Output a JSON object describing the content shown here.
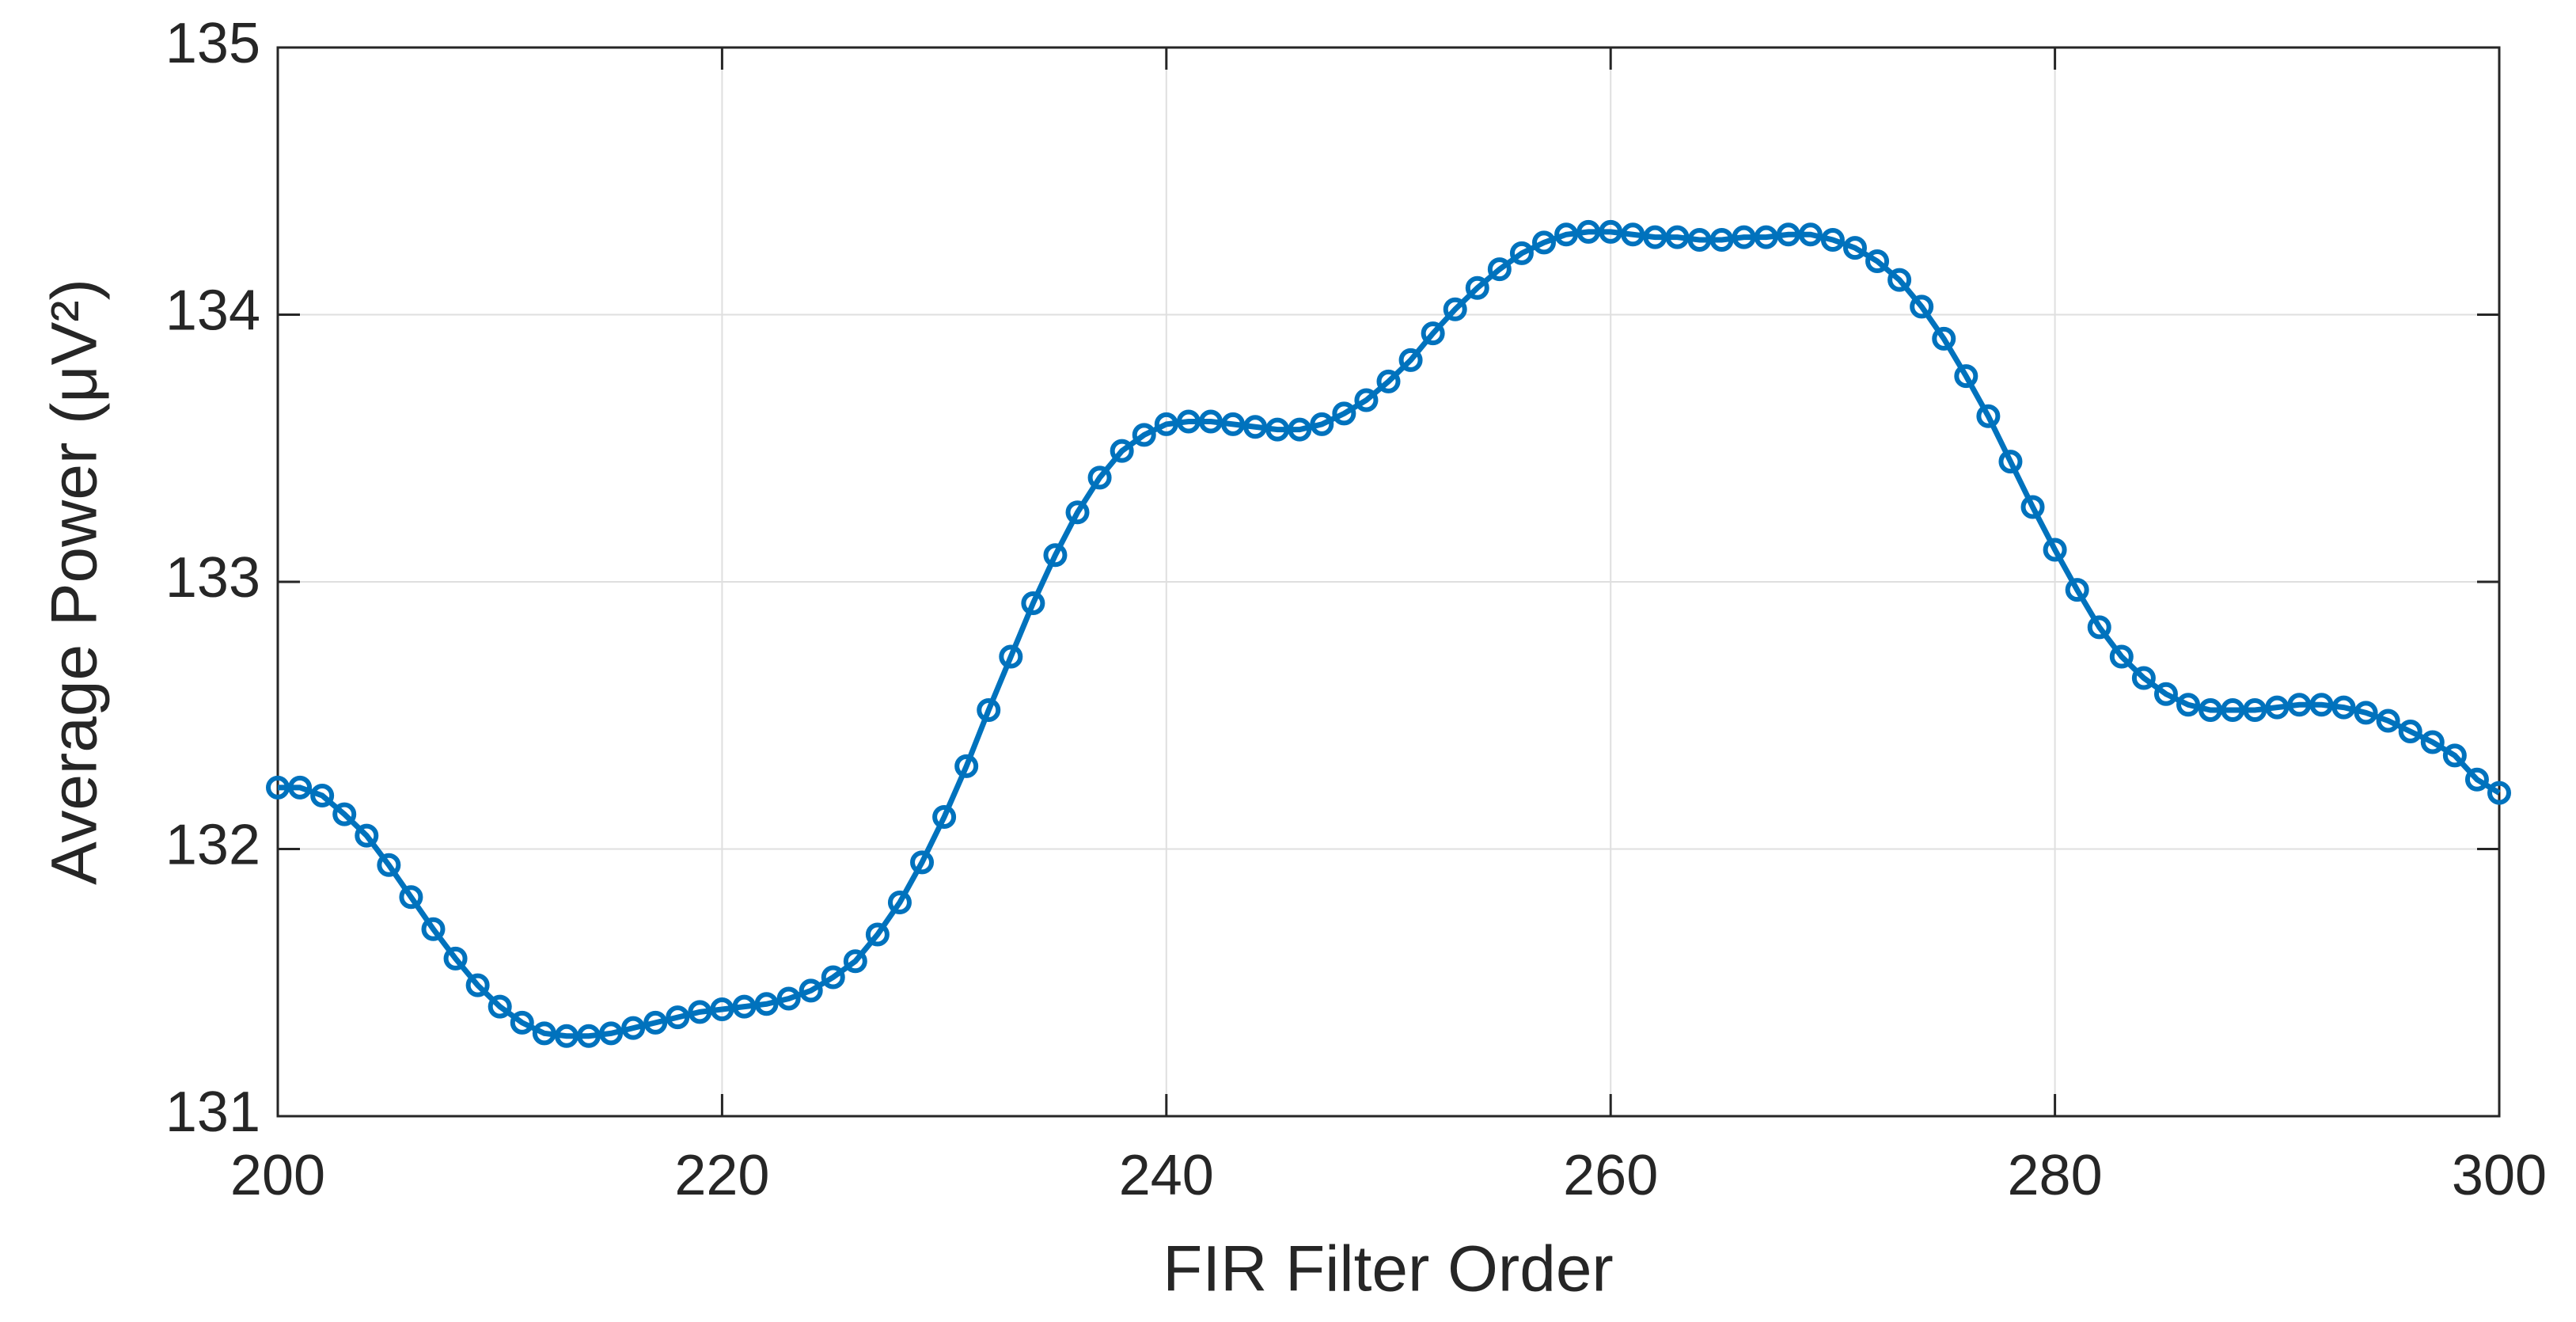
{
  "chart_data": {
    "type": "line",
    "xlabel": "FIR Filter Order",
    "ylabel": "Average Power (μV²)",
    "x": [
      200,
      201,
      202,
      203,
      204,
      205,
      206,
      207,
      208,
      209,
      210,
      211,
      212,
      213,
      214,
      215,
      216,
      217,
      218,
      219,
      220,
      221,
      222,
      223,
      224,
      225,
      226,
      227,
      228,
      229,
      230,
      231,
      232,
      233,
      234,
      235,
      236,
      237,
      238,
      239,
      240,
      241,
      242,
      243,
      244,
      245,
      246,
      247,
      248,
      249,
      250,
      251,
      252,
      253,
      254,
      255,
      256,
      257,
      258,
      259,
      260,
      261,
      262,
      263,
      264,
      265,
      266,
      267,
      268,
      269,
      270,
      271,
      272,
      273,
      274,
      275,
      276,
      277,
      278,
      279,
      280,
      281,
      282,
      283,
      284,
      285,
      286,
      287,
      288,
      289,
      290,
      291,
      292,
      293,
      294,
      295,
      296,
      297,
      298,
      299,
      300
    ],
    "series": [
      {
        "color": "#0072BD",
        "values": [
          132.23,
          132.23,
          132.2,
          132.13,
          132.05,
          131.94,
          131.82,
          131.7,
          131.59,
          131.49,
          131.41,
          131.35,
          131.31,
          131.3,
          131.3,
          131.31,
          131.33,
          131.35,
          131.37,
          131.39,
          131.4,
          131.41,
          131.42,
          131.44,
          131.47,
          131.52,
          131.58,
          131.68,
          131.8,
          131.95,
          132.12,
          132.31,
          132.52,
          132.72,
          132.92,
          133.1,
          133.26,
          133.39,
          133.49,
          133.55,
          133.59,
          133.6,
          133.6,
          133.59,
          133.58,
          133.57,
          133.57,
          133.59,
          133.63,
          133.68,
          133.75,
          133.83,
          133.93,
          134.02,
          134.1,
          134.17,
          134.23,
          134.27,
          134.3,
          134.31,
          134.31,
          134.3,
          134.29,
          134.29,
          134.28,
          134.28,
          134.29,
          134.29,
          134.3,
          134.3,
          134.28,
          134.25,
          134.2,
          134.13,
          134.03,
          133.91,
          133.77,
          133.62,
          133.45,
          133.28,
          133.12,
          132.97,
          132.83,
          132.72,
          132.64,
          132.58,
          132.54,
          132.52,
          132.52,
          132.52,
          132.53,
          132.54,
          132.54,
          132.53,
          132.51,
          132.48,
          132.44,
          132.4,
          132.35,
          132.26,
          132.21
        ]
      }
    ],
    "xlim": [
      200,
      300
    ],
    "xticks": [
      200,
      220,
      240,
      260,
      280,
      300
    ],
    "ylim": [
      131,
      135
    ],
    "yticks": [
      131,
      132,
      133,
      134,
      135
    ],
    "grid": true
  }
}
